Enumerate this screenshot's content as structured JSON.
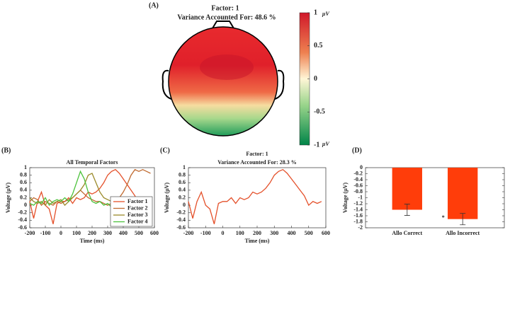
{
  "chart_data": [
    {
      "type": "topomap",
      "label": "(A)",
      "title": "Factor: 1",
      "subtitle": "Variance Accounted For: 48.6 %",
      "clim": [
        -1,
        1
      ],
      "colorbar_ticks": [
        1,
        0.5,
        0,
        -0.5,
        -1
      ],
      "units": "μV"
    },
    {
      "type": "line",
      "label": "(B)",
      "title": "All Temporal Factors",
      "xlabel": "Time (ms)",
      "ylabel": "Voltage (μV)",
      "x": [
        -200,
        -175,
        -150,
        -125,
        -100,
        -75,
        -50,
        -25,
        0,
        25,
        50,
        75,
        100,
        125,
        150,
        175,
        200,
        225,
        250,
        275,
        300,
        325,
        350,
        375,
        400,
        425,
        450,
        475,
        500,
        525,
        550,
        575
      ],
      "xlim": [
        -200,
        600
      ],
      "xticks": [
        -200,
        -100,
        0,
        100,
        200,
        300,
        400,
        500,
        600
      ],
      "ylim": [
        -0.6,
        1
      ],
      "yticks": [
        -0.6,
        -0.4,
        -0.2,
        0,
        0.2,
        0.4,
        0.6,
        0.8,
        1
      ],
      "legend": "lower right",
      "series": [
        {
          "name": "Factor 1",
          "color": "#e4502a",
          "values": [
            0.1,
            -0.35,
            0.1,
            0.35,
            0.0,
            -0.1,
            -0.5,
            0.05,
            0.1,
            0.1,
            0.2,
            0.05,
            0.2,
            0.15,
            0.2,
            0.35,
            0.3,
            0.35,
            0.45,
            0.6,
            0.8,
            0.9,
            0.95,
            0.85,
            0.7,
            0.55,
            0.4,
            0.25,
            0.0,
            0.1,
            0.05,
            0.1
          ]
        },
        {
          "name": "Factor 2",
          "color": "#c06a30",
          "values": [
            0.1,
            0.2,
            0.15,
            0.0,
            0.1,
            0.05,
            0.0,
            0.1,
            0.05,
            0.1,
            0.15,
            0.2,
            0.3,
            0.4,
            0.3,
            0.2,
            0.15,
            0.1,
            0.1,
            0.05,
            0.0,
            0.05,
            0.1,
            0.2,
            0.35,
            0.55,
            0.8,
            0.95,
            0.9,
            0.95,
            0.9,
            0.85
          ]
        },
        {
          "name": "Factor 3",
          "color": "#9a8a2a",
          "values": [
            0.2,
            0.1,
            0.05,
            0.1,
            0.0,
            0.15,
            0.05,
            0.1,
            0.15,
            0.0,
            0.1,
            0.2,
            0.3,
            0.4,
            0.55,
            0.8,
            0.85,
            0.6,
            0.35,
            0.2,
            0.15,
            0.1,
            0.15,
            0.1,
            0.05,
            0.1,
            0.15,
            0.1,
            0.05,
            0.1,
            0.0,
            0.05
          ]
        },
        {
          "name": "Factor 4",
          "color": "#4cc23c",
          "values": [
            0.05,
            0.0,
            0.1,
            0.05,
            0.2,
            0.0,
            0.1,
            0.15,
            0.1,
            0.2,
            0.1,
            0.3,
            0.6,
            0.9,
            0.7,
            0.35,
            0.1,
            0.05,
            0.1,
            0.0,
            0.05,
            -0.05,
            0.0,
            -0.1,
            -0.05,
            -0.15,
            -0.2,
            -0.1,
            0.1,
            0.15,
            0.2,
            0.2
          ]
        }
      ]
    },
    {
      "type": "line",
      "label": "(C)",
      "title": "Factor: 1",
      "subtitle": "Variance Accounted For: 28.3 %",
      "xlabel": "Time (ms)",
      "ylabel": "Voltage (μV)",
      "x": [
        -200,
        -175,
        -150,
        -125,
        -100,
        -75,
        -50,
        -25,
        0,
        25,
        50,
        75,
        100,
        125,
        150,
        175,
        200,
        225,
        250,
        275,
        300,
        325,
        350,
        375,
        400,
        425,
        450,
        475,
        500,
        525,
        550,
        575
      ],
      "xlim": [
        -200,
        600
      ],
      "xticks": [
        -200,
        -100,
        0,
        100,
        200,
        300,
        400,
        500,
        600
      ],
      "ylim": [
        -0.6,
        1
      ],
      "yticks": [
        -0.6,
        -0.4,
        -0.2,
        0,
        0.2,
        0.4,
        0.6,
        0.8,
        1
      ],
      "color": "#e4502a",
      "values": [
        0.1,
        -0.35,
        0.1,
        0.35,
        0.0,
        -0.1,
        -0.5,
        0.05,
        0.1,
        0.1,
        0.2,
        0.05,
        0.2,
        0.15,
        0.2,
        0.35,
        0.3,
        0.35,
        0.45,
        0.6,
        0.8,
        0.9,
        0.95,
        0.85,
        0.7,
        0.55,
        0.4,
        0.25,
        0.0,
        0.1,
        0.05,
        0.1
      ]
    },
    {
      "type": "bar",
      "label": "(D)",
      "ylabel": "Voltage (μV)",
      "categories": [
        "Allo Correct",
        "Allo Incorrect"
      ],
      "values": [
        -1.4,
        -1.71
      ],
      "errors": [
        0.19,
        0.19
      ],
      "color": "#ff3d0a",
      "ylim": [
        -2,
        0
      ],
      "yticks": [
        0,
        -0.2,
        -0.4,
        -0.6,
        -0.8,
        -1,
        -1.2,
        -1.4,
        -1.6,
        -1.8,
        -2
      ],
      "annotation": "*"
    }
  ]
}
